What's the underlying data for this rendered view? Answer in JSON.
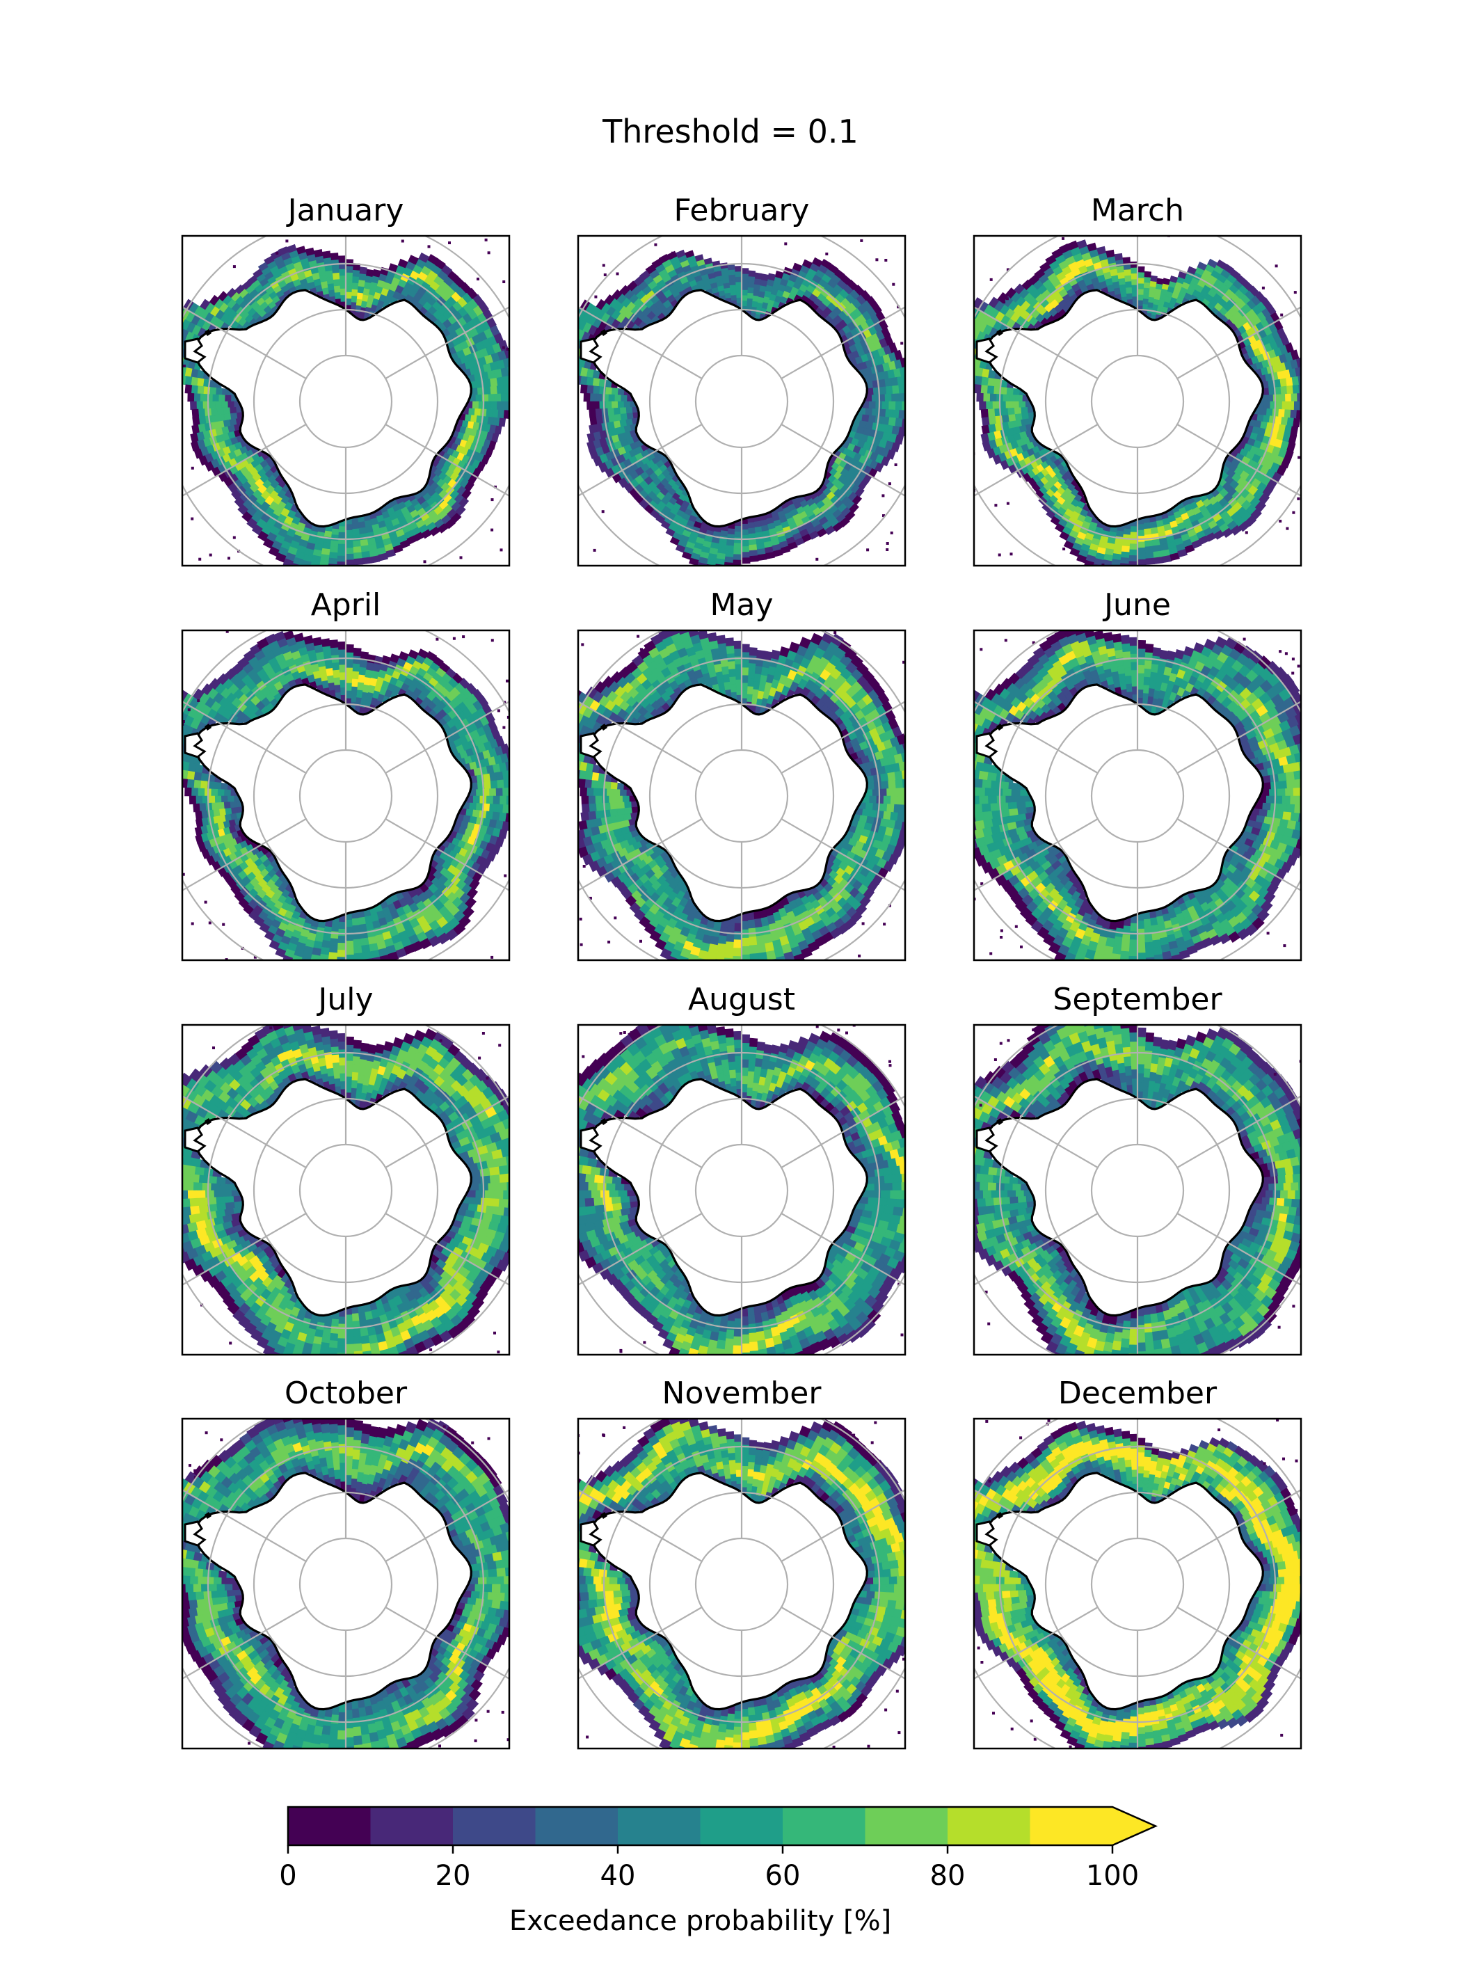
{
  "figure": {
    "suptitle": "Threshold = 0.1"
  },
  "chart_data": {
    "type": "heatmap",
    "title": "Threshold = 0.1",
    "projection": "south-polar-stereographic",
    "grid": true,
    "panels": [
      {
        "title": "January",
        "extent": 0.6,
        "intensity": 0.55
      },
      {
        "title": "February",
        "extent": 0.55,
        "intensity": 0.45
      },
      {
        "title": "March",
        "extent": 0.58,
        "intensity": 0.6
      },
      {
        "title": "April",
        "extent": 0.7,
        "intensity": 0.55
      },
      {
        "title": "May",
        "extent": 0.82,
        "intensity": 0.55
      },
      {
        "title": "June",
        "extent": 0.9,
        "intensity": 0.55
      },
      {
        "title": "July",
        "extent": 0.97,
        "intensity": 0.6
      },
      {
        "title": "August",
        "extent": 0.98,
        "intensity": 0.55
      },
      {
        "title": "September",
        "extent": 0.99,
        "intensity": 0.55
      },
      {
        "title": "October",
        "extent": 0.96,
        "intensity": 0.55
      },
      {
        "title": "November",
        "extent": 0.88,
        "intensity": 0.65
      },
      {
        "title": "December",
        "extent": 0.75,
        "intensity": 0.75
      }
    ],
    "colorbar": {
      "label": "Exceedance probability [%]",
      "min": 0,
      "max": 100,
      "bins": 10,
      "extend": "max",
      "ticks": [
        0,
        20,
        40,
        60,
        80,
        100
      ],
      "colors": [
        "#440154",
        "#482878",
        "#3e4989",
        "#31688e",
        "#26828e",
        "#1f9e89",
        "#35b779",
        "#6ece58",
        "#b5de2b",
        "#fde725"
      ]
    },
    "gridline_color": "#b0b0b0",
    "coast_color": "#000000"
  }
}
